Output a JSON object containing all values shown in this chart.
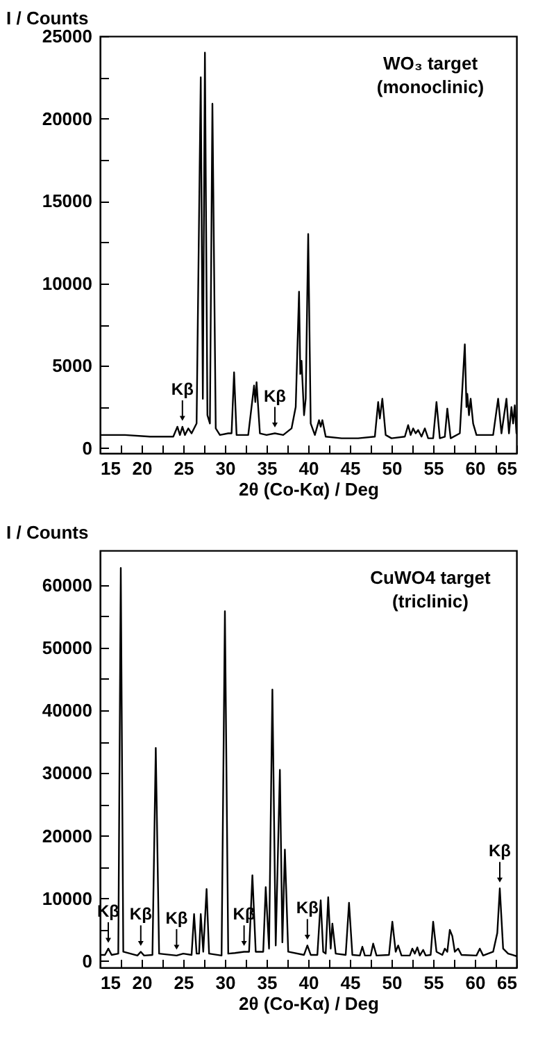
{
  "chart_data": [
    {
      "type": "line",
      "xlabel": "2θ (Co-Kα) / Deg",
      "ylabel": "I / Counts",
      "annotations": [
        "WO₃ target",
        "(monoclinic)",
        {
          "text": "Kβ",
          "x": 24.9,
          "y": 1300
        },
        {
          "text": "Kβ",
          "x": 36.0,
          "y": 900
        }
      ],
      "x": [
        15,
        18,
        21,
        23.8,
        24.3,
        24.6,
        24.9,
        25.2,
        25.6,
        26.0,
        26.6,
        27.1,
        27.35,
        27.6,
        27.9,
        28.2,
        28.5,
        28.9,
        29.4,
        30.4,
        30.8,
        31.1,
        31.4,
        32.8,
        33.5,
        33.65,
        33.8,
        34.2,
        35.0,
        36.0,
        37.0,
        38.0,
        38.5,
        38.9,
        39.05,
        39.2,
        39.5,
        39.7,
        40.0,
        40.3,
        40.8,
        41.3,
        41.5,
        41.7,
        42.1,
        44,
        46,
        48,
        48.4,
        48.6,
        48.9,
        49.3,
        50,
        51.6,
        52.0,
        52.3,
        52.6,
        52.9,
        53.2,
        53.6,
        54.0,
        54.4,
        55.0,
        55.4,
        55.8,
        56.4,
        56.7,
        57.1,
        58.2,
        58.8,
        59.0,
        59.1,
        59.3,
        59.5,
        59.8,
        60.2,
        62.2,
        62.8,
        63.2,
        63.8,
        64.1,
        64.4,
        64.6,
        64.8,
        65
      ],
      "series": [
        {
          "color": "#000000",
          "values": [
            800,
            800,
            700,
            700,
            1300,
            800,
            1300,
            800,
            1200,
            900,
            1500,
            22500,
            3000,
            24000,
            2000,
            1500,
            20900,
            1200,
            800,
            900,
            900,
            4600,
            800,
            800,
            3800,
            2800,
            4000,
            900,
            800,
            900,
            800,
            1200,
            2500,
            9500,
            4500,
            5300,
            2000,
            3000,
            13000,
            1500,
            800,
            1700,
            1300,
            1700,
            700,
            600,
            600,
            700,
            2800,
            1800,
            3000,
            800,
            600,
            700,
            1400,
            800,
            1200,
            900,
            1100,
            700,
            1200,
            600,
            600,
            2800,
            600,
            700,
            2400,
            600,
            900,
            6300,
            2500,
            3300,
            2000,
            3000,
            1500,
            800,
            800,
            3000,
            900,
            3000,
            900,
            2500,
            1500,
            2600,
            900
          ]
        }
      ],
      "xlim": [
        15,
        65
      ],
      "ylim": [
        -300,
        25000
      ],
      "xticks": [
        15,
        {
          "value": 17.5,
          "label": null
        },
        20,
        {
          "value": 22.5,
          "label": null
        },
        25,
        {
          "value": 27.5,
          "label": null
        },
        30,
        {
          "value": 32.5,
          "label": null
        },
        35,
        {
          "value": 37.5,
          "label": null
        },
        40,
        {
          "value": 42.5,
          "label": null
        },
        45,
        {
          "value": 47.5,
          "label": null
        },
        50,
        {
          "value": 52.5,
          "label": null
        },
        55,
        {
          "value": 57.5,
          "label": null
        },
        60,
        {
          "value": 62.5,
          "label": null
        },
        65
      ],
      "yticks": [
        0,
        {
          "value": 2500,
          "label": null
        },
        5000,
        {
          "value": 7500,
          "label": null
        },
        10000,
        {
          "value": 12500,
          "label": null
        },
        15000,
        {
          "value": 17500,
          "label": null
        },
        20000,
        {
          "value": 22500,
          "label": null
        },
        25000
      ]
    },
    {
      "type": "line",
      "xlabel": "2θ (Co-Kα) / Deg",
      "ylabel": "I / Counts",
      "annotations": [
        "CuWO4 target",
        "(triclinic)",
        {
          "text": "Kβ",
          "x": 16.0,
          "y": 2000
        },
        {
          "text": "Kβ",
          "x": 19.9,
          "y": 1500
        },
        {
          "text": "Kβ",
          "x": 24.2,
          "y": 900
        },
        {
          "text": "Kβ",
          "x": 32.3,
          "y": 1500
        },
        {
          "text": "Kβ",
          "x": 39.9,
          "y": 2500
        },
        {
          "text": "Kβ",
          "x": 63.0,
          "y": 11600
        }
      ],
      "x": [
        15,
        15.6,
        16.0,
        16.4,
        17.2,
        17.5,
        17.8,
        19.5,
        19.9,
        20.3,
        21.3,
        21.7,
        22.1,
        24.2,
        25,
        26,
        26.3,
        26.6,
        26.9,
        27.1,
        27.4,
        27.8,
        28.1,
        29.6,
        30.0,
        30.4,
        31.2,
        32.3,
        32.9,
        33.3,
        33.7,
        34.6,
        34.9,
        35.3,
        35.7,
        36.1,
        36.6,
        36.9,
        37.2,
        37.6,
        39.5,
        39.9,
        40.3,
        41.1,
        41.5,
        41.8,
        42.1,
        42.4,
        42.7,
        42.9,
        43.3,
        44.5,
        44.9,
        45.3,
        46.2,
        46.5,
        46.8,
        47.5,
        47.8,
        48.2,
        49.7,
        50.1,
        50.5,
        50.8,
        51.2,
        52.2,
        52.5,
        52.8,
        53.1,
        53.4,
        53.8,
        54.1,
        54.7,
        55.0,
        55.4,
        56.1,
        56.4,
        56.7,
        57.0,
        57.3,
        57.6,
        58.0,
        58.4,
        60.2,
        60.6,
        61.0,
        62.2,
        62.7,
        63.0,
        63.4,
        64.0,
        64.5,
        65
      ],
      "series": [
        {
          "color": "#000000",
          "values": [
            1000,
            1000,
            2000,
            1000,
            1200,
            62700,
            1500,
            900,
            1500,
            900,
            1000,
            34000,
            1200,
            900,
            1200,
            1000,
            7500,
            1200,
            1200,
            7500,
            1500,
            11500,
            1200,
            900,
            55800,
            1200,
            1300,
            1500,
            1500,
            13700,
            1500,
            1500,
            11800,
            2000,
            43300,
            2500,
            30500,
            3000,
            17800,
            1500,
            1000,
            2500,
            1000,
            1000,
            9700,
            1500,
            1200,
            10200,
            2000,
            6000,
            1200,
            1000,
            9300,
            1000,
            900,
            2300,
            900,
            900,
            2800,
            900,
            1000,
            6300,
            1500,
            2500,
            900,
            900,
            2000,
            1200,
            2200,
            900,
            1800,
            900,
            1000,
            6300,
            1500,
            1000,
            2000,
            1500,
            5000,
            4000,
            1500,
            2000,
            1000,
            900,
            2000,
            900,
            1500,
            4500,
            11600,
            2000,
            1200,
            1000,
            800
          ]
        }
      ],
      "xlim": [
        15,
        65
      ],
      "ylim": [
        -1000,
        65500
      ],
      "xticks": [
        15,
        {
          "value": 17.5,
          "label": null
        },
        20,
        {
          "value": 22.5,
          "label": null
        },
        25,
        {
          "value": 27.5,
          "label": null
        },
        30,
        {
          "value": 32.5,
          "label": null
        },
        35,
        {
          "value": 37.5,
          "label": null
        },
        40,
        {
          "value": 42.5,
          "label": null
        },
        45,
        {
          "value": 47.5,
          "label": null
        },
        50,
        {
          "value": 52.5,
          "label": null
        },
        55,
        {
          "value": 57.5,
          "label": null
        },
        60,
        {
          "value": 62.5,
          "label": null
        },
        65
      ],
      "yticks": [
        0,
        {
          "value": 5000,
          "label": null
        },
        10000,
        {
          "value": 15000,
          "label": null
        },
        20000,
        {
          "value": 25000,
          "label": null
        },
        30000,
        {
          "value": 35000,
          "label": null
        },
        40000,
        {
          "value": 45000,
          "label": null
        },
        50000,
        {
          "value": 55000,
          "label": null
        },
        60000
      ]
    }
  ]
}
